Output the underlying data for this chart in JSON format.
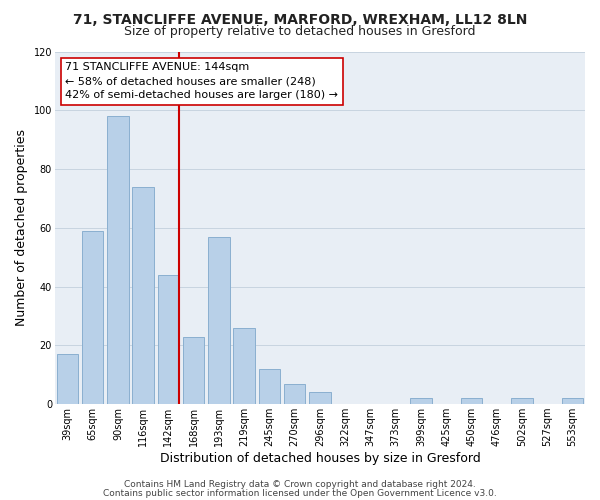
{
  "title1": "71, STANCLIFFE AVENUE, MARFORD, WREXHAM, LL12 8LN",
  "title2": "Size of property relative to detached houses in Gresford",
  "xlabel": "Distribution of detached houses by size in Gresford",
  "ylabel": "Number of detached properties",
  "bar_labels": [
    "39sqm",
    "65sqm",
    "90sqm",
    "116sqm",
    "142sqm",
    "168sqm",
    "193sqm",
    "219sqm",
    "245sqm",
    "270sqm",
    "296sqm",
    "322sqm",
    "347sqm",
    "373sqm",
    "399sqm",
    "425sqm",
    "450sqm",
    "476sqm",
    "502sqm",
    "527sqm",
    "553sqm"
  ],
  "bar_values": [
    17,
    59,
    98,
    74,
    44,
    23,
    57,
    26,
    12,
    7,
    4,
    0,
    0,
    0,
    2,
    0,
    2,
    0,
    2,
    0,
    2
  ],
  "bar_color": "#b8d0e8",
  "bar_edge_color": "#8aafd0",
  "vline_color": "#cc0000",
  "property_bar_index": 4,
  "annotation_line1": "71 STANCLIFFE AVENUE: 144sqm",
  "annotation_line2": "← 58% of detached houses are smaller (248)",
  "annotation_line3": "42% of semi-detached houses are larger (180) →",
  "ylim": [
    0,
    120
  ],
  "yticks": [
    0,
    20,
    40,
    60,
    80,
    100,
    120
  ],
  "footer1": "Contains HM Land Registry data © Crown copyright and database right 2024.",
  "footer2": "Contains public sector information licensed under the Open Government Licence v3.0.",
  "background_color": "#ffffff",
  "plot_bg_color": "#e8eef5",
  "grid_color": "#c8d4e0",
  "title_fontsize": 10,
  "subtitle_fontsize": 9,
  "axis_label_fontsize": 9,
  "tick_fontsize": 7,
  "annotation_fontsize": 8,
  "footer_fontsize": 6.5
}
